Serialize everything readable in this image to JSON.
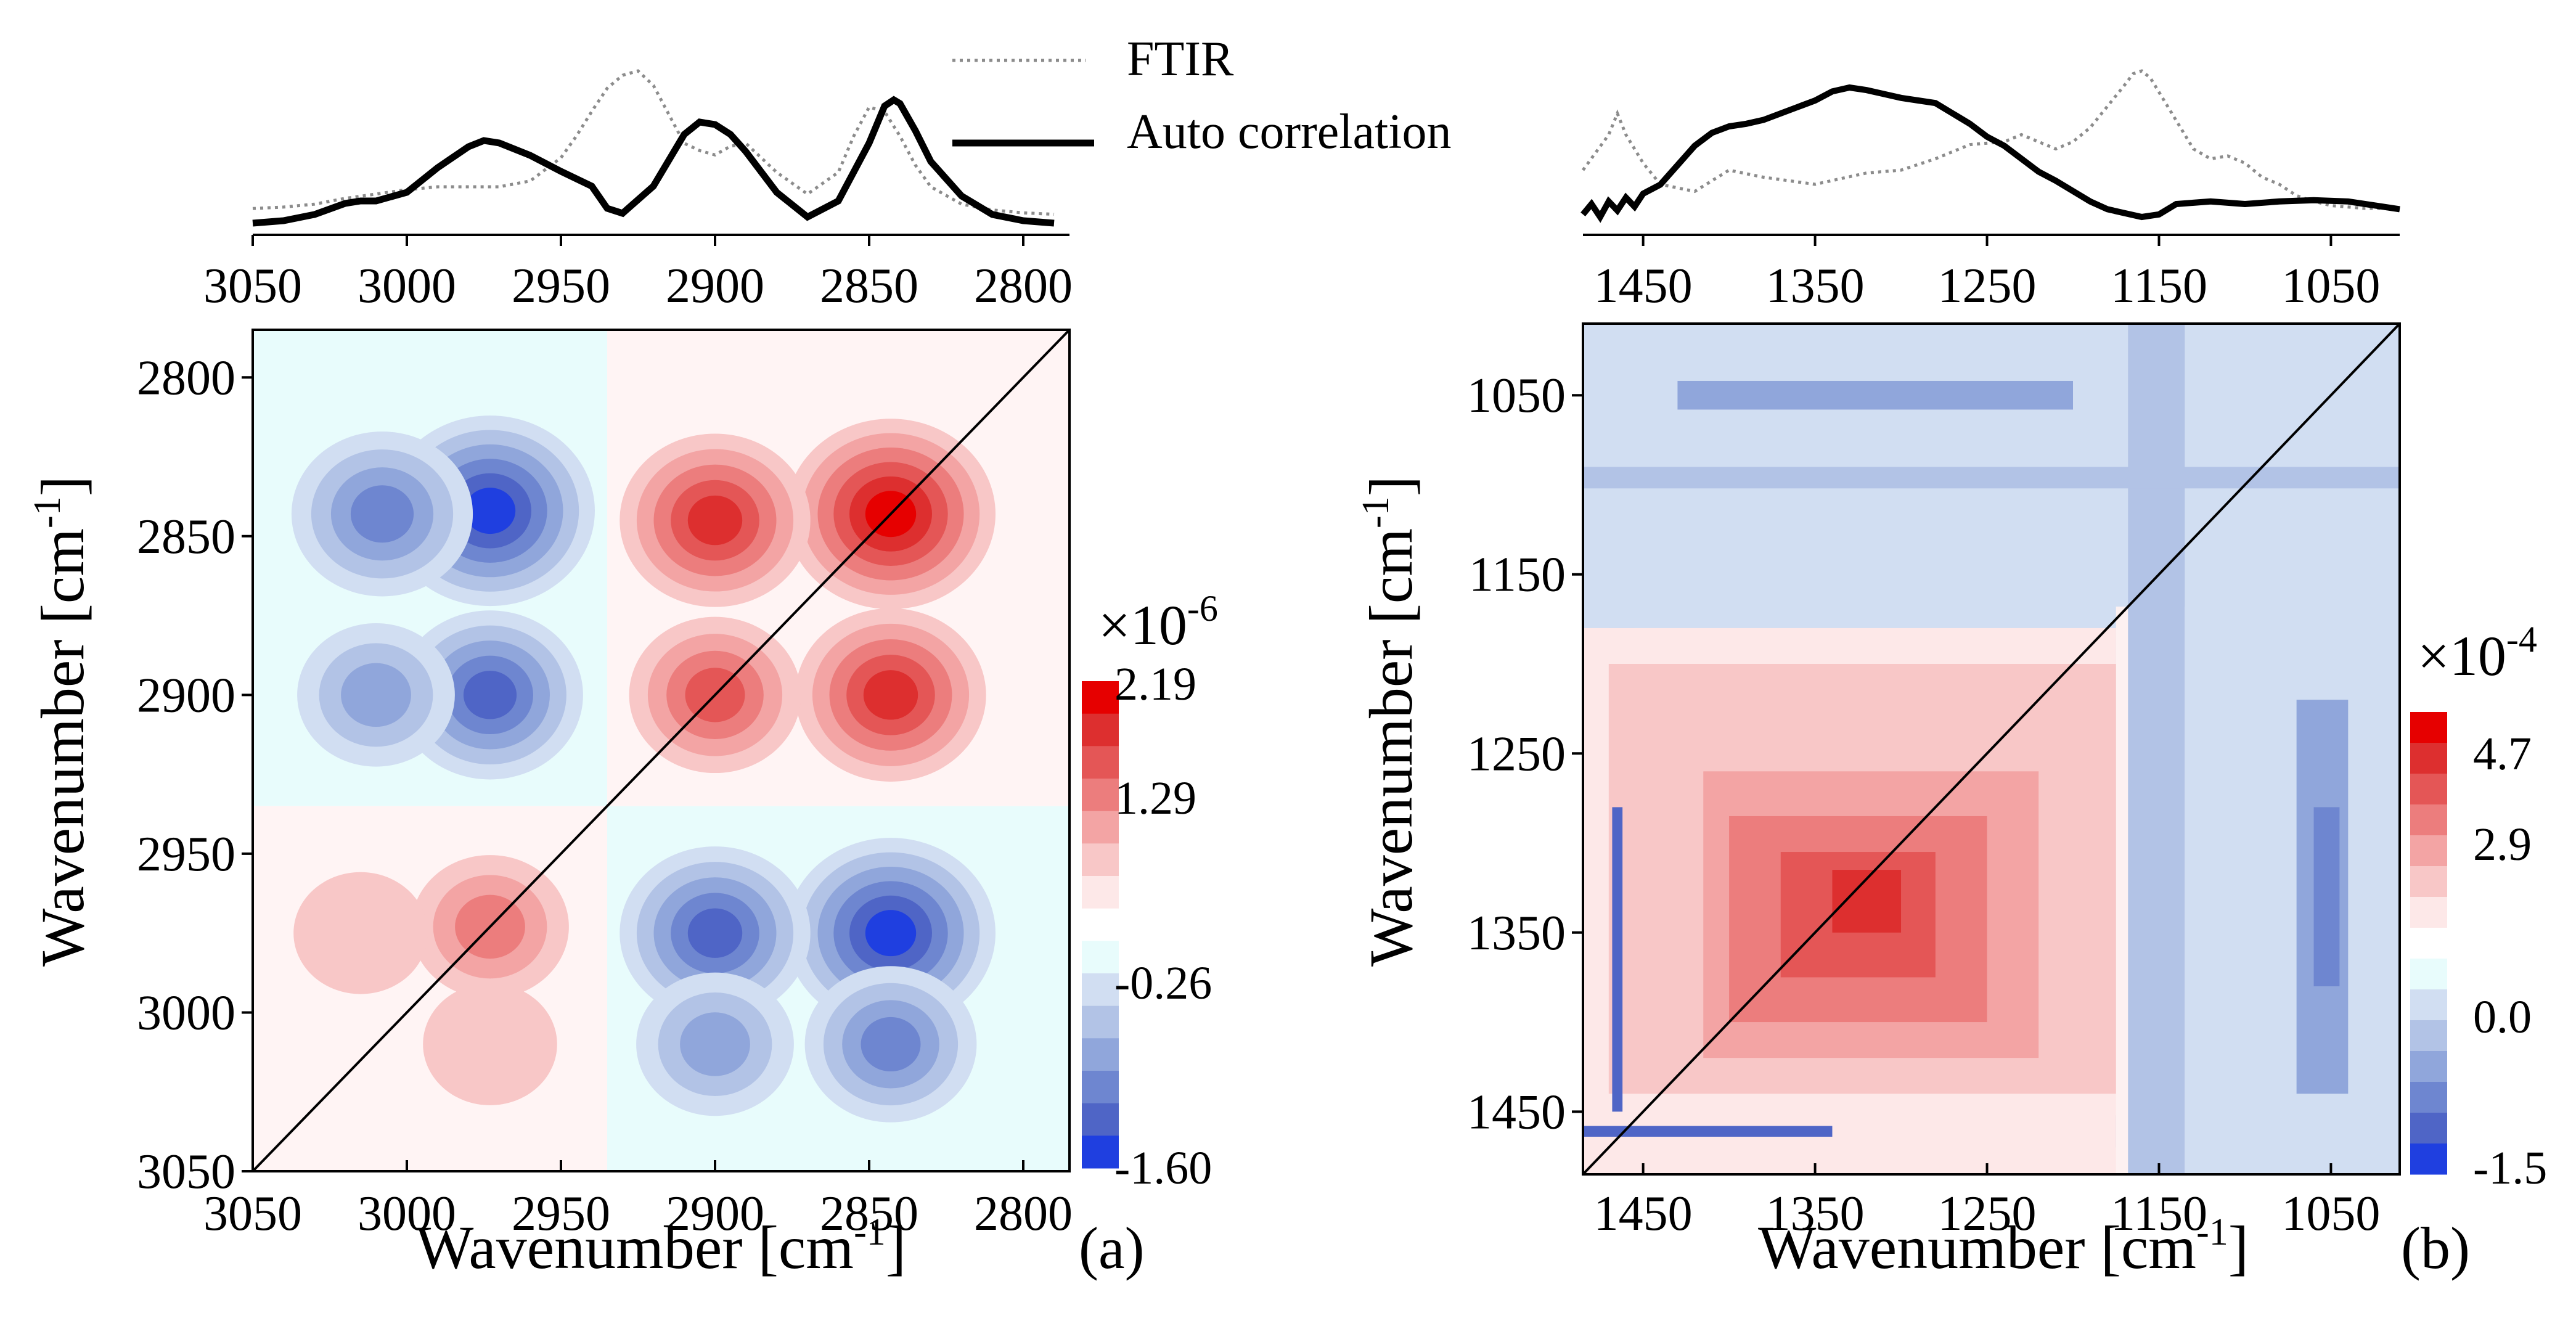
{
  "legend": {
    "ftir_label": "FTIR",
    "auto_label": "Auto correlation"
  },
  "axis_title_x": "Wavenumber [cm",
  "axis_title_y": "Wavenumber [cm",
  "axis_title_sup": "-1",
  "axis_title_close": "]",
  "colors": {
    "pos": [
      "#fde8e8",
      "#f8c7c7",
      "#f3a4a4",
      "#ec7d7d",
      "#e45656",
      "#dd2f2f",
      "#e60000"
    ],
    "neg": [
      "#e8fcfc",
      "#d1def2",
      "#b2c3e6",
      "#90a6db",
      "#6e86d0",
      "#4f65c6",
      "#1f3fe0"
    ],
    "diagonal": "#000000",
    "ftir_line": "#8c8c8c",
    "auto_line": "#000000"
  },
  "chart_data": [
    {
      "id": "a",
      "type": "heatmap",
      "panel_label": "(a)",
      "xlim": [
        3050,
        2785
      ],
      "ylim": [
        2785,
        3050
      ],
      "x_ticks": [
        "3050",
        "3000",
        "2950",
        "2900",
        "2850",
        "2800"
      ],
      "x_tick_values": [
        3050,
        3000,
        2950,
        2900,
        2850,
        2800
      ],
      "y_ticks": [
        "2800",
        "2850",
        "2900",
        "2950",
        "3000",
        "3050"
      ],
      "y_tick_values": [
        2800,
        2850,
        2900,
        2950,
        3000,
        3050
      ],
      "colorbar": {
        "exponent_base": "×10",
        "exponent": "-6",
        "labels": [
          "2.19",
          "1.29",
          "-0.26",
          "-1.60"
        ],
        "range": [
          -1.6,
          2.19
        ]
      },
      "peaks": [
        {
          "x": 2843,
          "y": 2843,
          "sign": 1,
          "amp": 1.0
        },
        {
          "x": 2900,
          "y": 2845,
          "sign": 1,
          "amp": 0.8
        },
        {
          "x": 2843,
          "y": 2900,
          "sign": 1,
          "amp": 0.8
        },
        {
          "x": 2900,
          "y": 2900,
          "sign": 1,
          "amp": 0.6
        },
        {
          "x": 2973,
          "y": 2973,
          "sign": 1,
          "amp": 0.45
        },
        {
          "x": 3015,
          "y": 2975,
          "sign": 1,
          "amp": 0.2
        },
        {
          "x": 2973,
          "y": 3010,
          "sign": 1,
          "amp": 0.2
        },
        {
          "x": 2973,
          "y": 2842,
          "sign": -1,
          "amp": 1.0
        },
        {
          "x": 3008,
          "y": 2843,
          "sign": -1,
          "amp": 0.7
        },
        {
          "x": 2973,
          "y": 2900,
          "sign": -1,
          "amp": 0.75
        },
        {
          "x": 3010,
          "y": 2900,
          "sign": -1,
          "amp": 0.45
        },
        {
          "x": 2843,
          "y": 2975,
          "sign": -1,
          "amp": 1.0
        },
        {
          "x": 2900,
          "y": 2975,
          "sign": -1,
          "amp": 0.8
        },
        {
          "x": 2843,
          "y": 3010,
          "sign": -1,
          "amp": 0.6
        },
        {
          "x": 2900,
          "y": 3010,
          "sign": -1,
          "amp": 0.45
        }
      ],
      "ftir": {
        "x": [
          3050,
          3040,
          3030,
          3020,
          3010,
          3000,
          2990,
          2980,
          2970,
          2960,
          2950,
          2945,
          2940,
          2935,
          2930,
          2925,
          2920,
          2915,
          2910,
          2905,
          2900,
          2895,
          2890,
          2880,
          2870,
          2860,
          2855,
          2850,
          2845,
          2840,
          2835,
          2830,
          2820,
          2810,
          2800,
          2790
        ],
        "y": [
          0.05,
          0.06,
          0.08,
          0.12,
          0.15,
          0.18,
          0.2,
          0.2,
          0.2,
          0.24,
          0.4,
          0.55,
          0.72,
          0.88,
          0.97,
          1.0,
          0.9,
          0.7,
          0.5,
          0.45,
          0.42,
          0.48,
          0.5,
          0.3,
          0.15,
          0.3,
          0.55,
          0.75,
          0.72,
          0.55,
          0.35,
          0.2,
          0.08,
          0.04,
          0.02,
          0.01
        ]
      },
      "auto": {
        "x": [
          3050,
          3040,
          3030,
          3020,
          3015,
          3010,
          3000,
          2990,
          2980,
          2975,
          2970,
          2960,
          2950,
          2940,
          2935,
          2930,
          2920,
          2910,
          2905,
          2900,
          2895,
          2890,
          2880,
          2870,
          2860,
          2850,
          2845,
          2842,
          2840,
          2835,
          2830,
          2820,
          2810,
          2800,
          2790
        ],
        "y": [
          0.0,
          0.02,
          0.07,
          0.16,
          0.18,
          0.18,
          0.25,
          0.45,
          0.62,
          0.67,
          0.65,
          0.55,
          0.42,
          0.3,
          0.12,
          0.08,
          0.3,
          0.72,
          0.82,
          0.8,
          0.72,
          0.58,
          0.25,
          0.05,
          0.18,
          0.65,
          0.95,
          1.0,
          0.97,
          0.75,
          0.5,
          0.22,
          0.07,
          0.02,
          0.0
        ]
      }
    },
    {
      "id": "b",
      "type": "heatmap",
      "panel_label": "(b)",
      "xlim": [
        1485,
        1010
      ],
      "ylim": [
        1010,
        1485
      ],
      "x_ticks": [
        "1450",
        "1350",
        "1250",
        "1150",
        "1050"
      ],
      "x_tick_values": [
        1450,
        1350,
        1250,
        1150,
        1050
      ],
      "y_ticks": [
        "1050",
        "1150",
        "1250",
        "1350",
        "1450"
      ],
      "y_tick_values": [
        1050,
        1150,
        1250,
        1350,
        1450
      ],
      "colorbar": {
        "exponent_base": "×10",
        "exponent": "-4",
        "labels": [
          "4.7",
          "2.9",
          "0.0",
          "-1.5"
        ],
        "range": [
          -1.5,
          4.7
        ]
      },
      "ftir": {
        "x": [
          1485,
          1470,
          1465,
          1460,
          1450,
          1440,
          1420,
          1400,
          1380,
          1350,
          1320,
          1300,
          1280,
          1260,
          1240,
          1230,
          1220,
          1210,
          1200,
          1190,
          1180,
          1170,
          1165,
          1160,
          1155,
          1150,
          1140,
          1130,
          1120,
          1110,
          1100,
          1090,
          1080,
          1070,
          1060,
          1050,
          1040,
          1030,
          1020,
          1010
        ],
        "y": [
          0.3,
          0.55,
          0.7,
          0.55,
          0.35,
          0.2,
          0.15,
          0.3,
          0.25,
          0.2,
          0.28,
          0.3,
          0.38,
          0.48,
          0.5,
          0.55,
          0.5,
          0.45,
          0.5,
          0.6,
          0.75,
          0.9,
          0.98,
          1.0,
          0.95,
          0.85,
          0.65,
          0.45,
          0.38,
          0.4,
          0.35,
          0.25,
          0.2,
          0.12,
          0.08,
          0.05,
          0.04,
          0.03,
          0.03,
          0.02
        ]
      },
      "auto": {
        "x": [
          1485,
          1480,
          1475,
          1470,
          1465,
          1460,
          1455,
          1450,
          1440,
          1430,
          1420,
          1410,
          1400,
          1390,
          1380,
          1370,
          1360,
          1350,
          1340,
          1330,
          1320,
          1310,
          1300,
          1290,
          1280,
          1270,
          1260,
          1250,
          1240,
          1230,
          1220,
          1210,
          1200,
          1190,
          1180,
          1170,
          1160,
          1150,
          1140,
          1120,
          1100,
          1080,
          1060,
          1040,
          1020,
          1010
        ],
        "y": [
          0.02,
          0.1,
          0.0,
          0.12,
          0.05,
          0.15,
          0.08,
          0.18,
          0.25,
          0.4,
          0.55,
          0.65,
          0.7,
          0.72,
          0.75,
          0.8,
          0.85,
          0.9,
          0.97,
          1.0,
          0.98,
          0.95,
          0.92,
          0.9,
          0.88,
          0.8,
          0.72,
          0.62,
          0.55,
          0.45,
          0.35,
          0.28,
          0.2,
          0.12,
          0.06,
          0.03,
          0.0,
          0.02,
          0.1,
          0.12,
          0.1,
          0.12,
          0.13,
          0.12,
          0.08,
          0.06
        ]
      }
    }
  ]
}
